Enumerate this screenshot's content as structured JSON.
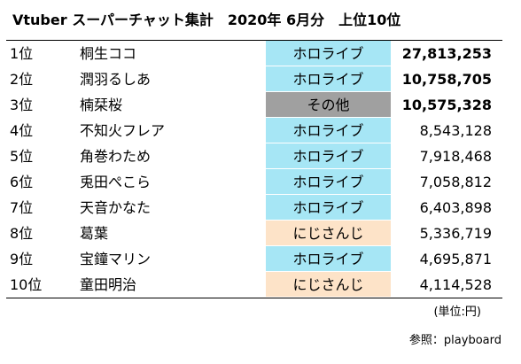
{
  "title": "Vtuber スーパーチャット集計　2020年 6月分　上位10位",
  "colors": {
    "hololive": "#a6e6f5",
    "other": "#a0a0a0",
    "nijisanji": "#fde3c8"
  },
  "rows": [
    {
      "rank": "1位",
      "name": "桐生ココ",
      "group": "ホロライブ",
      "group_type": "holo",
      "amount": "27,813,253",
      "bold": true
    },
    {
      "rank": "2位",
      "name": "潤羽るしあ",
      "group": "ホロライブ",
      "group_type": "holo",
      "amount": "10,758,705",
      "bold": true
    },
    {
      "rank": "3位",
      "name": "楠栞桜",
      "group": "その他",
      "group_type": "other",
      "amount": "10,575,328",
      "bold": true
    },
    {
      "rank": "4位",
      "name": "不知火フレア",
      "group": "ホロライブ",
      "group_type": "holo",
      "amount": "8,543,128",
      "bold": false
    },
    {
      "rank": "5位",
      "name": "角巻わため",
      "group": "ホロライブ",
      "group_type": "holo",
      "amount": "7,918,468",
      "bold": false
    },
    {
      "rank": "6位",
      "name": "兎田ぺこら",
      "group": "ホロライブ",
      "group_type": "holo",
      "amount": "7,058,812",
      "bold": false
    },
    {
      "rank": "7位",
      "name": "天音かなた",
      "group": "ホロライブ",
      "group_type": "holo",
      "amount": "6,403,898",
      "bold": false
    },
    {
      "rank": "8位",
      "name": "葛葉",
      "group": "にじさんじ",
      "group_type": "niji",
      "amount": "5,336,719",
      "bold": false
    },
    {
      "rank": "9位",
      "name": "宝鐘マリン",
      "group": "ホロライブ",
      "group_type": "holo",
      "amount": "4,695,871",
      "bold": false
    },
    {
      "rank": "10位",
      "name": "童田明治",
      "group": "にじさんじ",
      "group_type": "niji",
      "amount": "4,114,528",
      "bold": false
    }
  ],
  "unit_note": "(単位:円)",
  "source_note": "参照：playboard"
}
